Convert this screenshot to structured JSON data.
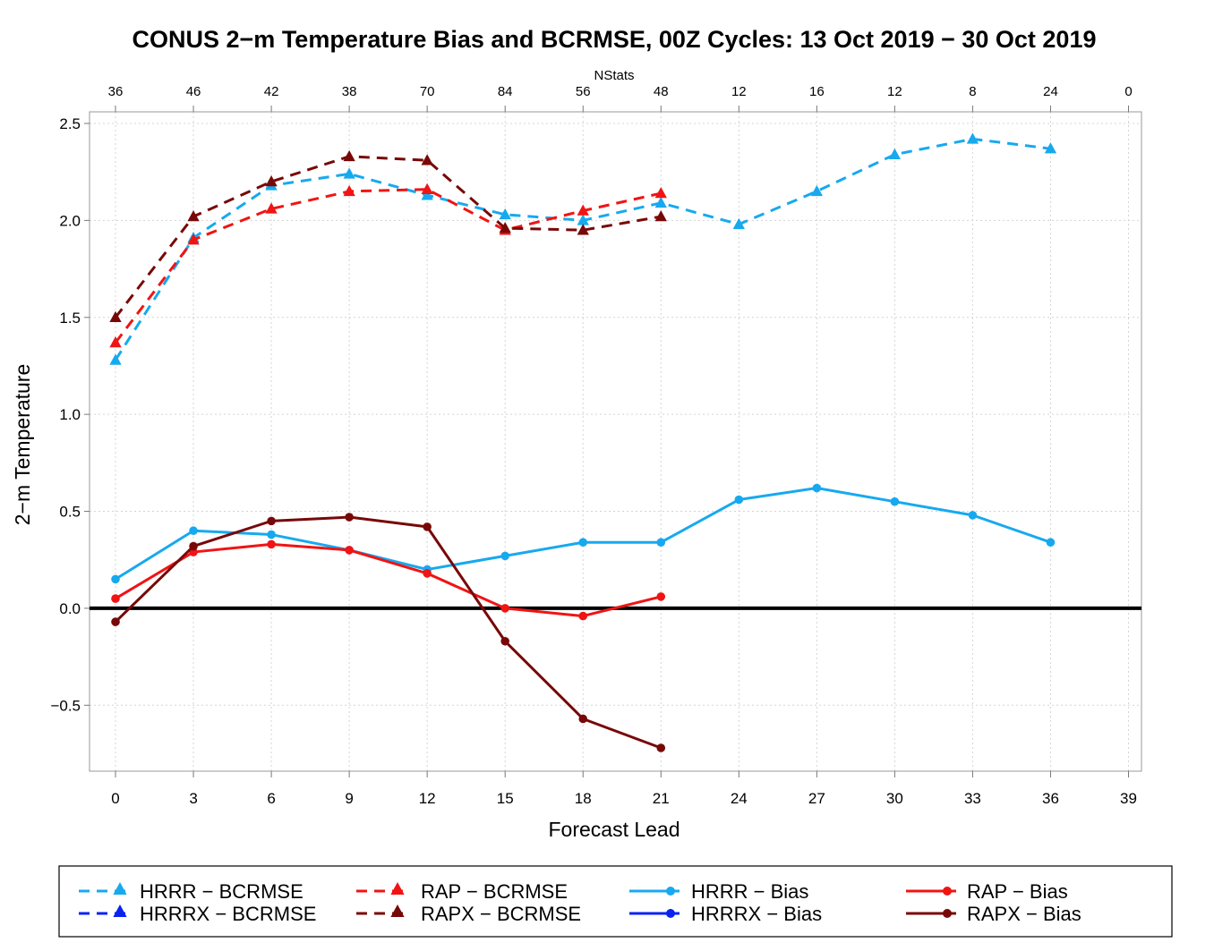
{
  "chart_data": {
    "type": "line",
    "title": "CONUS 2−m Temperature Bias and BCRMSE, 00Z Cycles: 13 Oct 2019 − 30 Oct 2019",
    "xlabel": "Forecast Lead",
    "ylabel": "2−m Temperature",
    "top_axis_label": "NStats",
    "x_ticks": [
      0,
      3,
      6,
      9,
      12,
      15,
      18,
      21,
      24,
      27,
      30,
      33,
      36,
      39
    ],
    "x_tick_labels": [
      "0",
      "3",
      "6",
      "9",
      "12",
      "15",
      "18",
      "21",
      "24",
      "27",
      "30",
      "33",
      "36",
      "39"
    ],
    "nstats": [
      "36",
      "46",
      "42",
      "38",
      "70",
      "84",
      "56",
      "48",
      "12",
      "16",
      "12",
      "8",
      "24",
      "0"
    ],
    "y_ticks": [
      -0.5,
      0.0,
      0.5,
      1.0,
      1.5,
      2.0,
      2.5
    ],
    "y_tick_labels": [
      "−0.5",
      "0.0",
      "0.5",
      "1.0",
      "1.5",
      "2.0",
      "2.5"
    ],
    "xlim": [
      -1,
      39.5
    ],
    "ylim": [
      -0.84,
      2.56
    ],
    "grid": true,
    "zero_line": true,
    "legend_position": "bottom",
    "series": [
      {
        "name": "HRRR − BCRMSE",
        "color": "#17a9ef",
        "style": "dashed",
        "marker": "triangle",
        "x": [
          0,
          3,
          6,
          9,
          12,
          15,
          18,
          21,
          24,
          27,
          30,
          33,
          36
        ],
        "values": [
          1.28,
          1.91,
          2.18,
          2.24,
          2.13,
          2.03,
          2.0,
          2.09,
          1.98,
          2.15,
          2.34,
          2.42,
          2.37
        ]
      },
      {
        "name": "HRRRX − BCRMSE",
        "color": "#0a22f0",
        "style": "dashed",
        "marker": "triangle",
        "x": [],
        "values": []
      },
      {
        "name": "RAP − BCRMSE",
        "color": "#f01414",
        "style": "dashed",
        "marker": "triangle",
        "x": [
          0,
          3,
          6,
          9,
          12,
          15,
          18,
          21
        ],
        "values": [
          1.37,
          1.9,
          2.06,
          2.15,
          2.16,
          1.95,
          2.05,
          2.14
        ]
      },
      {
        "name": "RAPX − BCRMSE",
        "color": "#780808",
        "style": "dashed",
        "marker": "triangle",
        "x": [
          0,
          3,
          6,
          9,
          12,
          15,
          18,
          21
        ],
        "values": [
          1.5,
          2.02,
          2.2,
          2.33,
          2.31,
          1.96,
          1.95,
          2.02
        ]
      },
      {
        "name": "HRRR − Bias",
        "color": "#17a9ef",
        "style": "solid",
        "marker": "circle",
        "x": [
          0,
          3,
          6,
          9,
          12,
          15,
          18,
          21,
          24,
          27,
          30,
          33,
          36
        ],
        "values": [
          0.15,
          0.4,
          0.38,
          0.3,
          0.2,
          0.27,
          0.34,
          0.34,
          0.56,
          0.62,
          0.55,
          0.48,
          0.34
        ]
      },
      {
        "name": "HRRRX − Bias",
        "color": "#0a22f0",
        "style": "solid",
        "marker": "circle",
        "x": [],
        "values": []
      },
      {
        "name": "RAP − Bias",
        "color": "#f01414",
        "style": "solid",
        "marker": "circle",
        "x": [
          0,
          3,
          6,
          9,
          12,
          15,
          18,
          21
        ],
        "values": [
          0.05,
          0.29,
          0.33,
          0.3,
          0.18,
          0.0,
          -0.04,
          0.06
        ]
      },
      {
        "name": "RAPX − Bias",
        "color": "#780808",
        "style": "solid",
        "marker": "circle",
        "x": [
          0,
          3,
          6,
          9,
          12,
          15,
          18,
          21
        ],
        "values": [
          -0.07,
          0.32,
          0.45,
          0.47,
          0.42,
          -0.17,
          -0.57,
          -0.72
        ]
      }
    ]
  }
}
